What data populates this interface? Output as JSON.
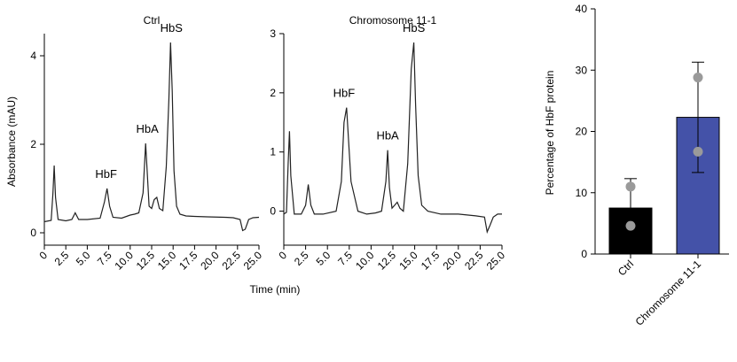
{
  "chart_data": [
    {
      "type": "line",
      "title": "Ctrl",
      "xlabel": "Time (min)",
      "ylabel": "Absorbance (mAU)",
      "xlim": [
        0,
        25
      ],
      "ylim": [
        -0.1,
        4.5
      ],
      "xticks": [
        "0",
        "2.5",
        "5.0",
        "7.5",
        "10.0",
        "12.5",
        "15.0",
        "17.5",
        "20.0",
        "22.5",
        "25.0"
      ],
      "yticks": [
        "0",
        "2",
        "4"
      ],
      "series": [
        {
          "name": "Ctrl",
          "x": [
            0,
            0.8,
            1.0,
            1.15,
            1.3,
            1.6,
            2.5,
            3.2,
            3.6,
            4.0,
            5.0,
            6.5,
            7.0,
            7.3,
            7.6,
            8.0,
            9.0,
            10.0,
            10.5,
            11.0,
            11.5,
            11.8,
            12.0,
            12.2,
            12.5,
            12.8,
            13.1,
            13.4,
            13.8,
            14.2,
            14.5,
            14.7,
            14.9,
            15.1,
            15.4,
            15.8,
            16.5,
            17.5,
            19.0,
            21.0,
            22.0,
            22.8,
            23.1,
            23.4,
            23.8,
            24.3,
            25.0
          ],
          "y": [
            0.25,
            0.28,
            0.9,
            1.52,
            0.8,
            0.3,
            0.27,
            0.3,
            0.45,
            0.3,
            0.3,
            0.33,
            0.7,
            1.0,
            0.6,
            0.35,
            0.33,
            0.4,
            0.42,
            0.45,
            0.9,
            2.02,
            1.3,
            0.6,
            0.55,
            0.75,
            0.8,
            0.55,
            0.5,
            1.5,
            3.0,
            4.3,
            3.2,
            1.4,
            0.6,
            0.42,
            0.38,
            0.37,
            0.36,
            0.35,
            0.34,
            0.3,
            0.05,
            0.08,
            0.3,
            0.34,
            0.35
          ]
        }
      ],
      "annotations": [
        {
          "text": "HbF",
          "x": 7.2,
          "y": 1.0
        },
        {
          "text": "HbA",
          "x": 12.0,
          "y": 2.02
        },
        {
          "text": "HbS",
          "x": 14.8,
          "y": 4.3
        }
      ]
    },
    {
      "type": "line",
      "title": "Chromosome 11-1",
      "xlabel": "Time (min)",
      "ylabel": "",
      "xlim": [
        0,
        25
      ],
      "ylim": [
        -0.5,
        3.0
      ],
      "xticks": [
        "0",
        "2.5",
        "5.0",
        "7.5",
        "10.0",
        "12.5",
        "15.0",
        "17.5",
        "20.0",
        "22.5",
        "25.0"
      ],
      "yticks": [
        "0",
        "1",
        "2",
        "3"
      ],
      "series": [
        {
          "name": "Chromosome 11-1",
          "x": [
            0,
            0.3,
            0.5,
            0.65,
            0.8,
            1.2,
            2.0,
            2.5,
            2.8,
            3.1,
            3.5,
            4.5,
            6.0,
            6.6,
            6.9,
            7.2,
            7.7,
            8.5,
            9.5,
            10.5,
            11.2,
            11.7,
            11.9,
            12.1,
            12.4,
            12.7,
            13.0,
            13.3,
            13.7,
            14.2,
            14.6,
            14.9,
            15.1,
            15.4,
            15.8,
            16.5,
            18.0,
            20.0,
            22.0,
            23.0,
            23.3,
            23.6,
            24.0,
            24.5,
            25.0
          ],
          "y": [
            -0.05,
            -0.02,
            0.8,
            1.35,
            0.6,
            -0.05,
            -0.05,
            0.1,
            0.45,
            0.1,
            -0.05,
            -0.05,
            0.0,
            0.5,
            1.5,
            1.75,
            0.5,
            0.0,
            -0.05,
            -0.03,
            0.0,
            0.5,
            1.03,
            0.4,
            0.05,
            0.1,
            0.15,
            0.05,
            0.0,
            0.8,
            2.4,
            2.85,
            1.8,
            0.6,
            0.1,
            0.0,
            -0.05,
            -0.05,
            -0.08,
            -0.1,
            -0.35,
            -0.25,
            -0.1,
            -0.05,
            -0.05
          ]
        }
      ],
      "annotations": [
        {
          "text": "HbF",
          "x": 6.9,
          "y": 1.75
        },
        {
          "text": "HbA",
          "x": 11.9,
          "y": 1.03
        },
        {
          "text": "HbS",
          "x": 14.9,
          "y": 2.85
        }
      ]
    },
    {
      "type": "bar",
      "title": "",
      "xlabel": "",
      "ylabel": "Percentage of HbF protein",
      "ylim": [
        0,
        40
      ],
      "yticks": [
        "0",
        "10",
        "20",
        "30",
        "40"
      ],
      "categories": [
        "Ctrl",
        "Chromosome 11-1"
      ],
      "values": [
        7.5,
        22.3
      ],
      "error": [
        4.8,
        9.0
      ],
      "colors": [
        "#000000",
        "#4452a8"
      ],
      "points": [
        [
          11.0,
          4.6
        ],
        [
          28.8,
          16.7
        ]
      ]
    }
  ]
}
